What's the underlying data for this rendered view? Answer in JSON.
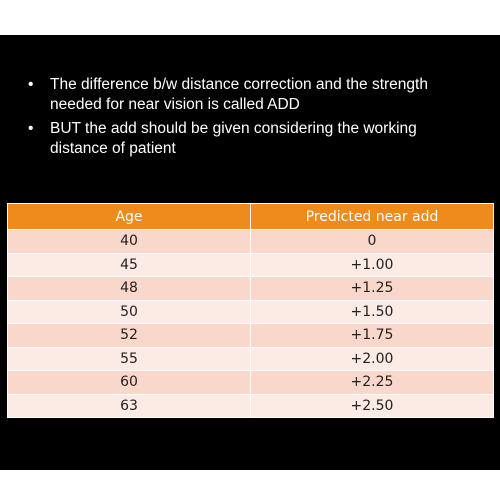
{
  "bullets": [
    "The difference b/w distance correction and the strength needed for near vision is called ADD",
    "BUT the add should be given considering the working distance of patient"
  ],
  "table": {
    "header": [
      "Age",
      "Predicted near add"
    ],
    "rows": [
      [
        "40",
        "0"
      ],
      [
        "45",
        "+1.00"
      ],
      [
        "48",
        "+1.25"
      ],
      [
        "50",
        "+1.50"
      ],
      [
        "52",
        "+1.75"
      ],
      [
        "55",
        "+2.00"
      ],
      [
        "60",
        "+2.25"
      ],
      [
        "63",
        "+2.50"
      ]
    ]
  }
}
